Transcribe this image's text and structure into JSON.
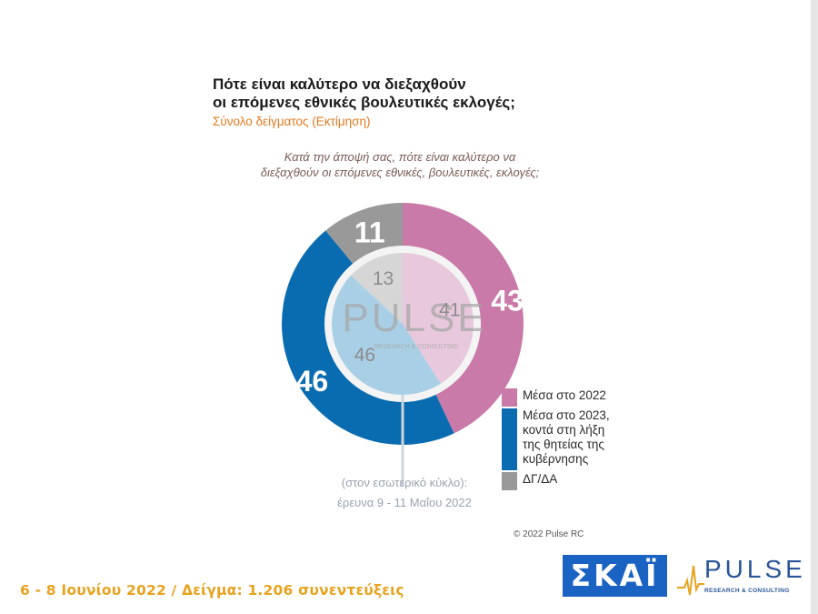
{
  "title_line1": "Πότε είναι καλύτερο να διεξαχθούν",
  "title_line2": "οι επόμενες εθνικές βουλευτικές εκλογές;",
  "subtitle": "Σύνολο δείγματος  (Εκτίμηση)",
  "question_line1": "Κατά την άποψή σας, πότε είναι καλύτερο να",
  "question_line2": "διεξαχθούν οι επόμενες εθνικές, βουλευτικές, εκλογές;",
  "inner_note_line1": "(στον εσωτερικό κύκλο):",
  "inner_note_line2": "έρευνα 9 - 11 Μαΐου 2022",
  "copyright": "© 2022 Pulse RC",
  "footer": "6 - 8  Ιουνίου  2022  /  Δείγμα:  1.206 συνεντεύξεις",
  "watermark": "PULSE",
  "watermark_sub": "RESEARCH & CONSULTING",
  "logos": {
    "skai": "ΣΚΑΪ",
    "pulse": "PULSE",
    "pulse_sub": "RESEARCH & CONSULTING"
  },
  "legend": [
    {
      "label_lines": [
        "Μέσα στο 2022"
      ],
      "color": "#c97aa8"
    },
    {
      "label_lines": [
        "Μέσα στο 2023,",
        "κοντά στη λήξη",
        "της θητείας της",
        "κυβέρνησης"
      ],
      "color": "#0a6cb0"
    },
    {
      "label_lines": [
        "ΔΓ/ΔΑ"
      ],
      "color": "#999999"
    }
  ],
  "chart_data": {
    "type": "donut",
    "categories": [
      "Μέσα στο 2022",
      "Μέσα στο 2023, κοντά στη λήξη της θητείας της κυβέρνησης",
      "ΔΓ/ΔΑ"
    ],
    "series": [
      {
        "ring": "outer",
        "values": [
          43,
          46,
          11
        ],
        "colors": [
          "#c97aa8",
          "#0a6cb0",
          "#999999"
        ]
      },
      {
        "ring": "inner",
        "values": [
          41,
          46,
          13
        ],
        "colors": [
          "#e8c8dc",
          "#a9cfe6",
          "#d6d6d6"
        ]
      }
    ]
  }
}
